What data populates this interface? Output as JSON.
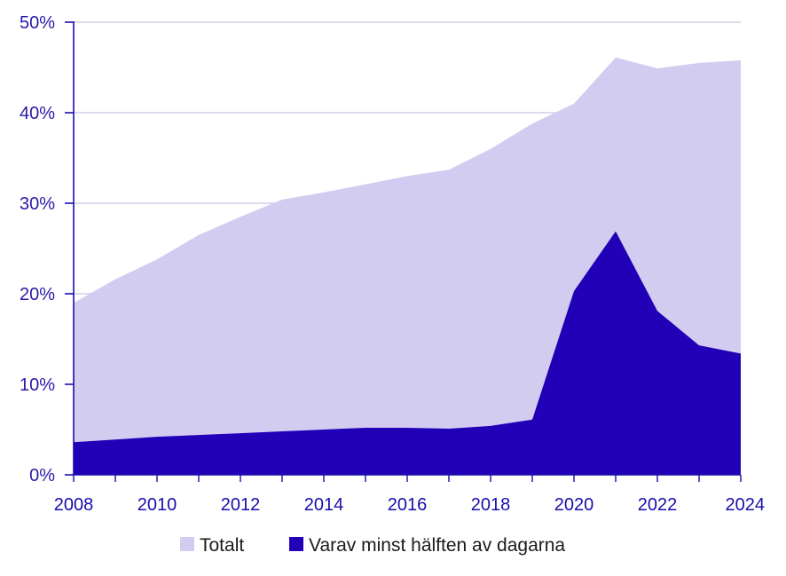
{
  "chart_data": {
    "type": "area",
    "title": "",
    "xlabel": "",
    "ylabel": "",
    "x": [
      2008,
      2009,
      2010,
      2011,
      2012,
      2013,
      2014,
      2015,
      2016,
      2017,
      2018,
      2019,
      2020,
      2021,
      2022,
      2023,
      2024
    ],
    "x_ticks": [
      "2008",
      "2010",
      "2012",
      "2014",
      "2016",
      "2018",
      "2020",
      "2022",
      "2024"
    ],
    "y_ticks": [
      "0%",
      "10%",
      "20%",
      "30%",
      "40%",
      "50%"
    ],
    "ylim": [
      0,
      50
    ],
    "grid": true,
    "legend_position": "bottom",
    "series": [
      {
        "name": "Totalt",
        "color": "#d2cdf0",
        "values": [
          19.0,
          21.6,
          23.8,
          26.5,
          28.5,
          30.4,
          31.2,
          32.1,
          33.0,
          33.7,
          36.0,
          38.8,
          41.0,
          46.1,
          44.9,
          45.5,
          45.8
        ]
      },
      {
        "name": "Varav minst hälften av dagarna",
        "color": "#2200b8",
        "values": [
          3.6,
          3.9,
          4.2,
          4.4,
          4.6,
          4.8,
          5.0,
          5.2,
          5.2,
          5.1,
          5.4,
          6.1,
          20.3,
          26.9,
          18.1,
          14.3,
          13.4
        ]
      }
    ]
  }
}
